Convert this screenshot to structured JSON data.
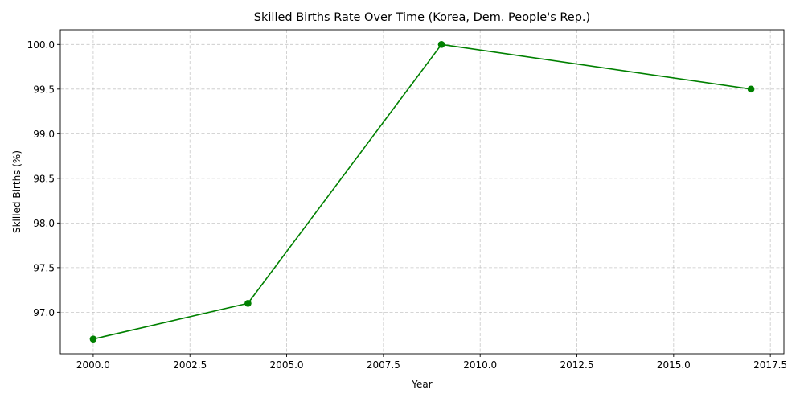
{
  "chart_data": {
    "type": "line",
    "title": "Skilled Births Rate Over Time (Korea, Dem. People's Rep.)",
    "xlabel": "Year",
    "ylabel": "Skilled Births (%)",
    "series": [
      {
        "x": [
          2000,
          2004,
          2009,
          2017
        ],
        "values": [
          96.7,
          97.1,
          100.0,
          99.5
        ],
        "color": "#008000",
        "marker": "circle"
      }
    ],
    "xlim": [
      1999.15,
      2017.85
    ],
    "ylim": [
      96.535,
      100.165
    ],
    "xticks": [
      2000.0,
      2002.5,
      2005.0,
      2007.5,
      2010.0,
      2012.5,
      2015.0,
      2017.5
    ],
    "xtick_labels": [
      "2000.0",
      "2002.5",
      "2005.0",
      "2007.5",
      "2010.0",
      "2012.5",
      "2015.0",
      "2017.5"
    ],
    "yticks": [
      97.0,
      97.5,
      98.0,
      98.5,
      99.0,
      99.5,
      100.0
    ],
    "ytick_labels": [
      "97.0",
      "97.5",
      "98.0",
      "98.5",
      "99.0",
      "99.5",
      "100.0"
    ],
    "grid": true,
    "legend": false
  }
}
